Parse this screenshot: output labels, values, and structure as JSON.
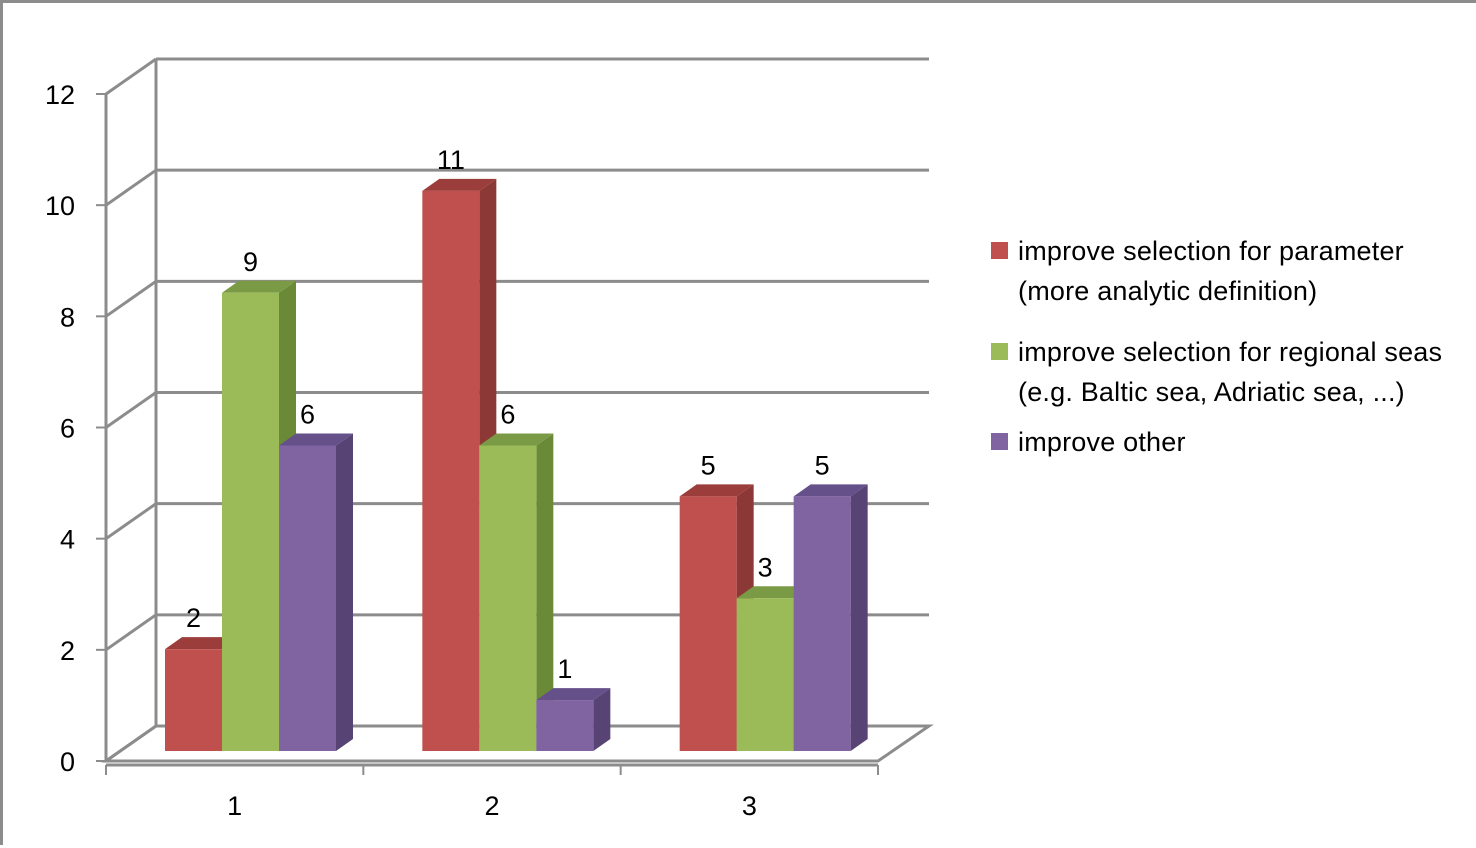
{
  "chart_data": {
    "type": "bar",
    "title": "",
    "xlabel": "",
    "ylabel": "",
    "ylim": [
      0,
      12
    ],
    "yticks": [
      "0",
      "2",
      "4",
      "6",
      "8",
      "10",
      "12"
    ],
    "categories": [
      "1",
      "2",
      "3"
    ],
    "series": [
      {
        "name": "improve selection for parameter (more analytic definition)",
        "values": [
          2,
          11,
          5
        ],
        "color": "#c0504d",
        "side": "#8c3836",
        "top": "#9b3d3a"
      },
      {
        "name": "improve selection for regional seas (e.g. Baltic sea, Adriatic sea, ...)",
        "values": [
          9,
          6,
          3
        ],
        "color": "#9bbb59",
        "side": "#6b8a37",
        "top": "#7b9a45"
      },
      {
        "name": "improve other",
        "values": [
          6,
          1,
          5
        ],
        "color": "#8064a2",
        "side": "#574374",
        "top": "#65508a"
      }
    ],
    "grid": true,
    "legend_position": "right",
    "style": "3d-clustered-column"
  },
  "legend": {
    "items": [
      {
        "label": "improve selection for parameter (more analytic definition)",
        "color": "#c0504d"
      },
      {
        "label": "improve selection for regional seas (e.g. Baltic sea, Adriatic sea, ...)",
        "color": "#9bbb59"
      },
      {
        "label": "improve other",
        "color": "#8064a2"
      }
    ]
  }
}
